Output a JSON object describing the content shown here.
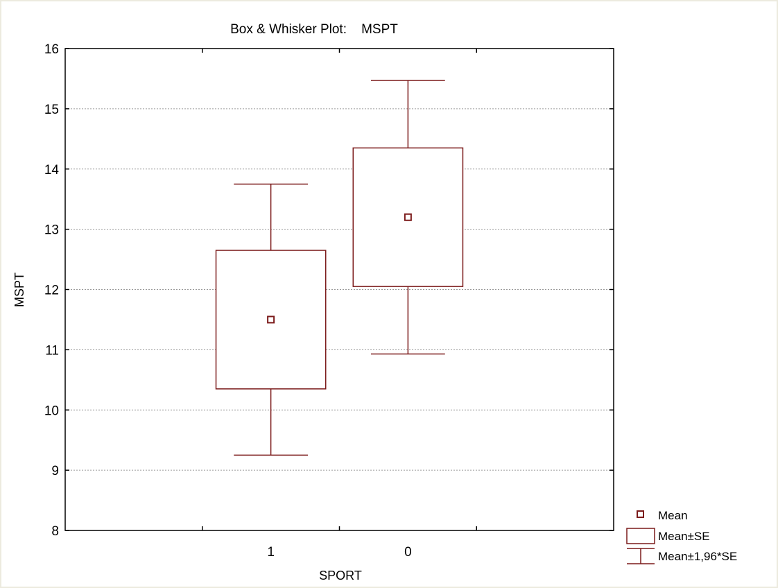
{
  "chart_data": {
    "type": "box",
    "title": "Box & Whisker Plot:    MSPT",
    "xlabel": "SPORT",
    "ylabel": "MSPT",
    "ylim": [
      8,
      16
    ],
    "yticks": [
      8,
      9,
      10,
      11,
      12,
      13,
      14,
      15,
      16
    ],
    "grid": "horizontal dotted",
    "categories": [
      "1",
      "0"
    ],
    "boxes": [
      {
        "category": "1",
        "mean": 11.5,
        "se_low": 10.35,
        "se_high": 12.65,
        "ci_low": 9.25,
        "ci_high": 13.75
      },
      {
        "category": "0",
        "mean": 13.2,
        "se_low": 12.05,
        "se_high": 14.35,
        "ci_low": 10.93,
        "ci_high": 15.47
      }
    ],
    "legend": {
      "position": "bottom-right, outside plot",
      "entries": [
        "Mean",
        "Mean±SE",
        "Mean±1,96*SE"
      ]
    },
    "colors": {
      "series": "#7b1a1a",
      "axis": "#000000",
      "grid": "#9a9a9a",
      "border": "#eceadf"
    }
  }
}
